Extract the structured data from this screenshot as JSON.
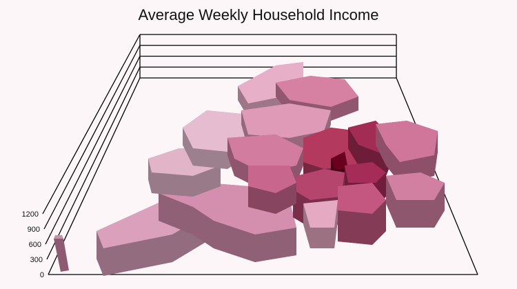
{
  "chart_data": {
    "type": "3d-prism-map",
    "title": "Average Weekly Household Income",
    "zaxis": {
      "ticks": [
        "0",
        "300",
        "600",
        "900",
        "1200"
      ],
      "range": [
        0,
        1200
      ]
    },
    "color_scale": {
      "low": "#e6b3c8",
      "high": "#7a0030"
    }
  }
}
